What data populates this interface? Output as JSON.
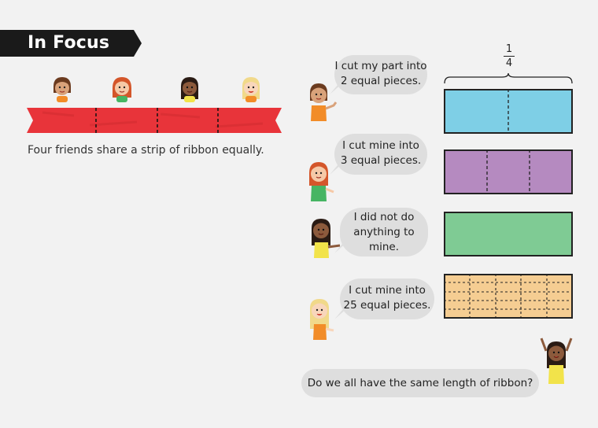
{
  "section": {
    "title": "In Focus"
  },
  "intro": {
    "caption": "Four friends share a strip of ribbon equally."
  },
  "fraction": {
    "numerator": "1",
    "denominator": "4"
  },
  "friends": [
    {
      "line1": "I cut my part into",
      "line2": "2 equal pieces.",
      "line3": ""
    },
    {
      "line1": "I cut mine into",
      "line2": "3 equal pieces.",
      "line3": ""
    },
    {
      "line1": "I did not do",
      "line2": "anything to",
      "line3": "mine."
    },
    {
      "line1": "I cut mine into",
      "line2": "25 equal pieces.",
      "line3": ""
    }
  ],
  "question": "Do we all have the same length of ribbon?",
  "strips": [
    {
      "color": "#7ecfe6",
      "pieces": 2
    },
    {
      "color": "#b58ac0",
      "pieces": 3
    },
    {
      "color": "#7fcb94",
      "pieces": 1
    },
    {
      "color": "#f5cd92",
      "pieces": 25
    }
  ],
  "colors": {
    "ribbon": "#e8343a",
    "banner": "#1a1a1a"
  }
}
